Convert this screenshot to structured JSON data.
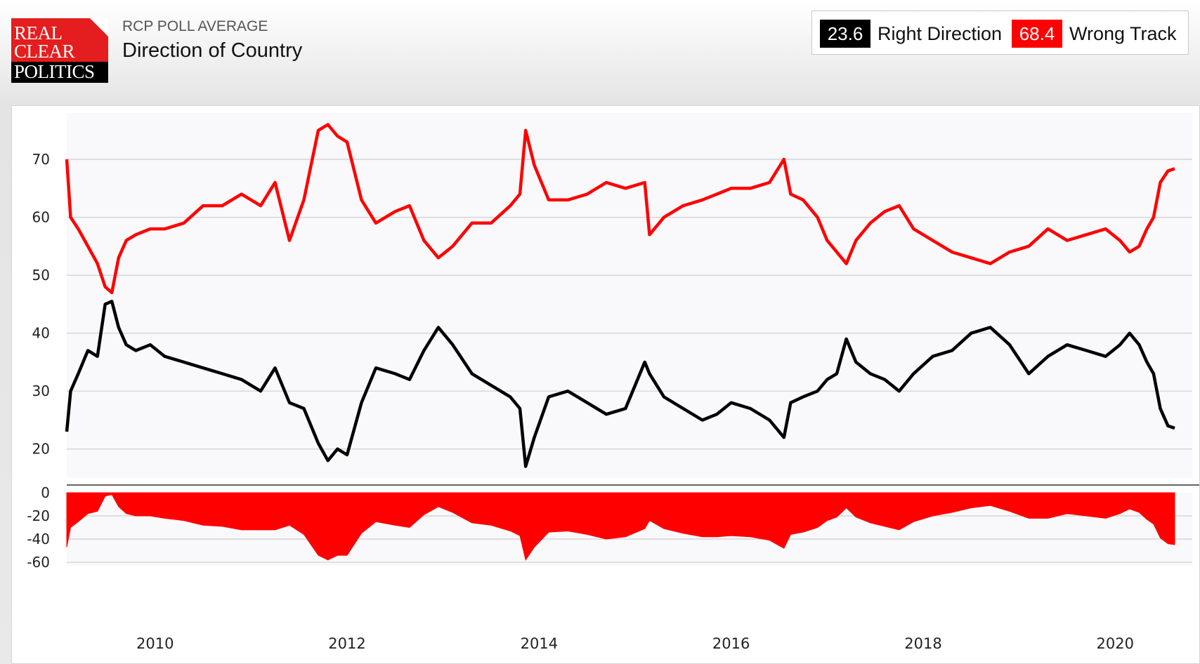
{
  "logo": {
    "lines": [
      "REAL",
      "CLEAR",
      "POLITICS"
    ]
  },
  "header": {
    "subtitle": "RCP POLL AVERAGE",
    "title": "Direction of Country"
  },
  "legend": {
    "right": {
      "value": "23.6",
      "label": "Right Direction",
      "color": "#000000"
    },
    "wrong": {
      "value": "68.4",
      "label": "Wrong Track",
      "color": "#ff0000"
    }
  },
  "chart_data": {
    "type": "line",
    "x_ticks": [
      "2010",
      "2012",
      "2014",
      "2016",
      "2018",
      "2020"
    ],
    "y_ticks": [
      "20",
      "30",
      "40",
      "50",
      "60",
      "70"
    ],
    "spread_ticks": [
      "0",
      "-20",
      "-40",
      "-60"
    ],
    "x_range": [
      2009.08,
      2020.62
    ],
    "ylim": [
      15,
      78
    ],
    "spread_ylim": [
      -63,
      0
    ],
    "grid": true,
    "colors": {
      "right_direction": "#000000",
      "wrong_track": "#ff0000",
      "spread": "#ff0000"
    },
    "x": [
      2009.08,
      2009.12,
      2009.2,
      2009.3,
      2009.4,
      2009.48,
      2009.55,
      2009.62,
      2009.7,
      2009.8,
      2009.95,
      2010.1,
      2010.3,
      2010.5,
      2010.7,
      2010.9,
      2011.1,
      2011.25,
      2011.4,
      2011.55,
      2011.7,
      2011.8,
      2011.9,
      2012.0,
      2012.15,
      2012.3,
      2012.5,
      2012.65,
      2012.8,
      2012.95,
      2013.1,
      2013.3,
      2013.5,
      2013.7,
      2013.8,
      2013.86,
      2013.95,
      2014.1,
      2014.3,
      2014.5,
      2014.7,
      2014.9,
      2015.1,
      2015.15,
      2015.3,
      2015.5,
      2015.7,
      2015.85,
      2016.0,
      2016.2,
      2016.4,
      2016.55,
      2016.62,
      2016.75,
      2016.9,
      2017.0,
      2017.1,
      2017.2,
      2017.3,
      2017.45,
      2017.6,
      2017.75,
      2017.9,
      2018.1,
      2018.3,
      2018.5,
      2018.7,
      2018.9,
      2019.1,
      2019.3,
      2019.5,
      2019.7,
      2019.9,
      2020.05,
      2020.15,
      2020.25,
      2020.33,
      2020.4,
      2020.47,
      2020.55,
      2020.62
    ],
    "series": [
      {
        "name": "Right Direction",
        "values": [
          23,
          30,
          33,
          37,
          36,
          45,
          45.5,
          41,
          38,
          37,
          38,
          36,
          35,
          34,
          33,
          32,
          30,
          34,
          28,
          27,
          21,
          18,
          20,
          19,
          28,
          34,
          33,
          32,
          37,
          41,
          38,
          33,
          31,
          29,
          27,
          17,
          22,
          29,
          30,
          28,
          26,
          27,
          35,
          33,
          29,
          27,
          25,
          26,
          28,
          27,
          25,
          22,
          28,
          29,
          30,
          32,
          33,
          39,
          35,
          33,
          32,
          30,
          33,
          36,
          37,
          40,
          41,
          38,
          33,
          36,
          38,
          37,
          36,
          38,
          40,
          38,
          35,
          33,
          27,
          24,
          23.6
        ]
      },
      {
        "name": "Wrong Track",
        "values": [
          70,
          60,
          58,
          55,
          52,
          48,
          47,
          53,
          56,
          57,
          58,
          58,
          59,
          62,
          62,
          64,
          62,
          66,
          56,
          63,
          75,
          76,
          74,
          73,
          63,
          59,
          61,
          62,
          56,
          53,
          55,
          59,
          59,
          62,
          64,
          75,
          69,
          63,
          63,
          64,
          66,
          65,
          66,
          57,
          60,
          62,
          63,
          64,
          65,
          65,
          66,
          70,
          64,
          63,
          60,
          56,
          54,
          52,
          56,
          59,
          61,
          62,
          58,
          56,
          54,
          53,
          52,
          54,
          55,
          58,
          56,
          57,
          58,
          56,
          54,
          55,
          58,
          60,
          66,
          68,
          68.4
        ]
      }
    ]
  }
}
